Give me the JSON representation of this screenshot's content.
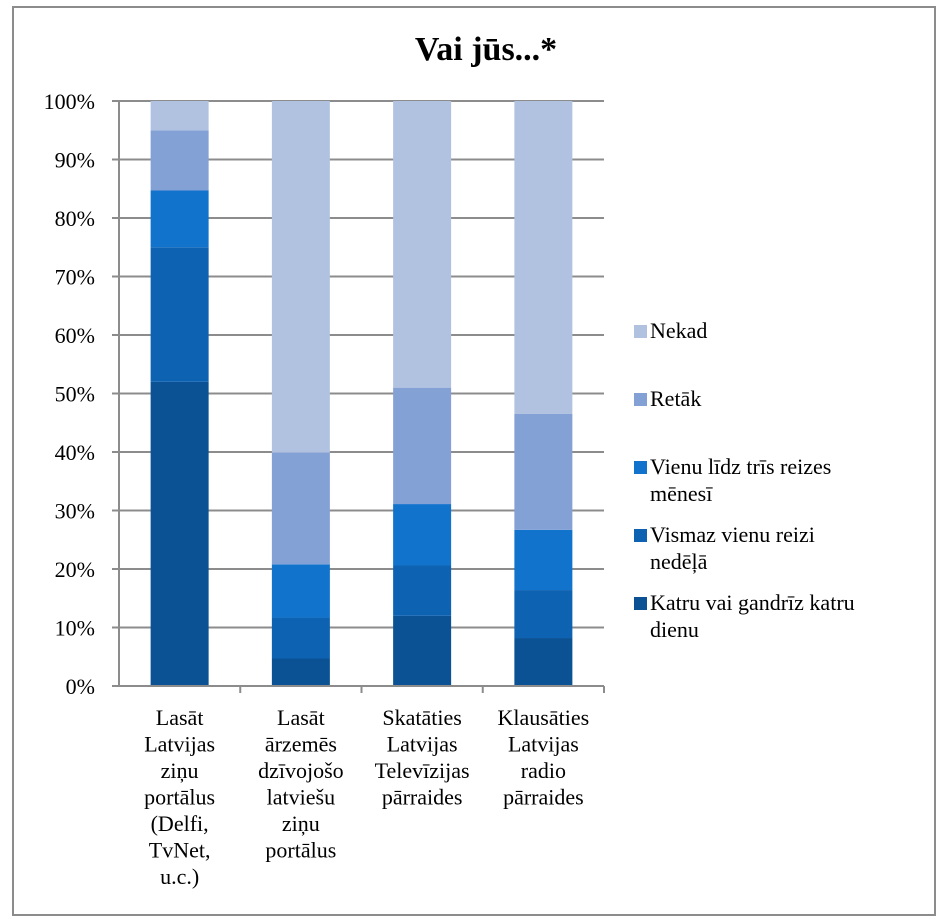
{
  "chart_data": {
    "type": "bar",
    "stacked": true,
    "title": "Vai jūs...*",
    "xlabel": "",
    "ylabel": "",
    "ylim": [
      0,
      100
    ],
    "y_ticks": [
      "0%",
      "10%",
      "20%",
      "30%",
      "40%",
      "50%",
      "60%",
      "70%",
      "80%",
      "90%",
      "100%"
    ],
    "grid": true,
    "legend_position": "right",
    "categories": [
      [
        "Lasāt",
        "Latvijas",
        "ziņu",
        "portālus",
        "(Delfi,",
        "TvNet,",
        "u.c.)"
      ],
      [
        "Lasāt",
        "ārzemēs",
        "dzīvojošo",
        "latviešu",
        "ziņu",
        "portālus"
      ],
      [
        "Skatāties",
        "Latvijas",
        "Televīzijas",
        "pārraides"
      ],
      [
        "Klausāties",
        "Latvijas",
        "radio",
        "pārraides"
      ]
    ],
    "series": [
      {
        "name": "Katru vai gandrīz katru dienu",
        "legend_lines": [
          "Katru vai gandrīz katru",
          "dienu"
        ],
        "color": "#0a5294",
        "values": [
          52,
          4.7,
          12,
          8.2
        ]
      },
      {
        "name": "Vismaz vienu reizi nedēļā",
        "legend_lines": [
          "Vismaz vienu reizi",
          "nedēļā"
        ],
        "color": "#0d62b2",
        "values": [
          23,
          7,
          8.6,
          8.2
        ]
      },
      {
        "name": "Vienu līdz trīs reizes mēnesī",
        "legend_lines": [
          "Vienu līdz trīs reizes",
          "mēnesī"
        ],
        "color": "#1273cc",
        "values": [
          9.7,
          9.1,
          10.5,
          10.3
        ]
      },
      {
        "name": "Retāk",
        "legend_lines": [
          "Retāk"
        ],
        "color": "#84a1d6",
        "values": [
          10.3,
          19.1,
          19.9,
          19.8
        ]
      },
      {
        "name": "Nekad",
        "legend_lines": [
          "Nekad"
        ],
        "color": "#b1c2e1",
        "values": [
          5,
          60.1,
          49,
          53.5
        ]
      }
    ]
  }
}
